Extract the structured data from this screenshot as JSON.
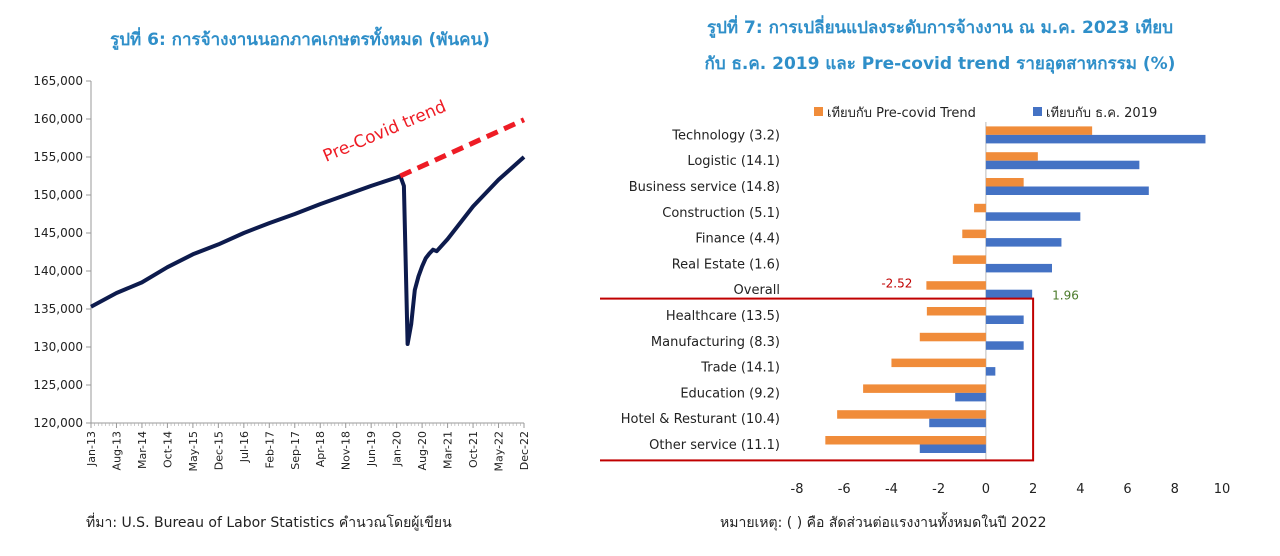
{
  "left": {
    "title": "รูปที่ 6: การจ้างงานนอกภาคเกษตรทั้งหมด (พันคน)",
    "source": "ที่มา:  U.S. Bureau of Labor Statistics คำนวณโดยผู้เขียน",
    "annotation": "Pre-Covid trend"
  },
  "right": {
    "title_line1": "รูปที่ 7: การเปลี่ยนแปลงระดับการจ้างงาน ณ ม.ค. 2023 เทียบ",
    "title_line2": "กับ ธ.ค. 2019 และ Pre-covid trend รายอุตสาหกรรม (%)",
    "note": "หมายเหตุ:  ( ) คือ สัดส่วนต่อแรงงานทั้งหมดในปี 2022"
  },
  "colors": {
    "line": "#0d1b4d",
    "trend": "#ee1c25",
    "orange": "#f08c3a",
    "blue": "#4472c4",
    "highlight_box": "#c00000",
    "title": "#2f8fc9"
  },
  "chart_data": [
    {
      "type": "line",
      "title": "รูปที่ 6: การจ้างงานนอกภาคเกษตรทั้งหมด (พันคน)",
      "ylim": [
        120000,
        165000
      ],
      "yticks": [
        "165,000",
        "160,000",
        "155,000",
        "150,000",
        "145,000",
        "140,000",
        "135,000",
        "130,000",
        "125,000",
        "120,000"
      ],
      "yticks_values": [
        165000,
        160000,
        155000,
        150000,
        145000,
        140000,
        135000,
        130000,
        125000,
        120000
      ],
      "xticks": [
        "Jan-13",
        "Aug-13",
        "Mar-14",
        "Oct-14",
        "May-15",
        "Dec-15",
        "Jul-16",
        "Feb-17",
        "Sep-17",
        "Apr-18",
        "Nov-18",
        "Jun-19",
        "Jan-20",
        "Aug-20",
        "Mar-21",
        "Oct-21",
        "May-22",
        "Dec-22"
      ],
      "series": [
        {
          "name": "",
          "x": [
            "Jan-13",
            "Aug-13",
            "Mar-14",
            "Oct-14",
            "May-15",
            "Dec-15",
            "Jul-16",
            "Feb-17",
            "Sep-17",
            "Apr-18",
            "Nov-18",
            "Jun-19",
            "Jan-20",
            "Feb-20",
            "Mar-20",
            "Apr-20",
            "May-20",
            "Jun-20",
            "Jul-20",
            "Aug-20",
            "Sep-20",
            "Oct-20",
            "Nov-20",
            "Dec-20",
            "Mar-21",
            "Oct-21",
            "May-22",
            "Dec-22"
          ],
          "values": [
            135300,
            137100,
            138500,
            140500,
            142200,
            143500,
            145000,
            146300,
            147500,
            148800,
            150000,
            151200,
            152300,
            152500,
            151200,
            130400,
            133000,
            137500,
            139300,
            140600,
            141700,
            142300,
            142800,
            142600,
            144200,
            148500,
            152000,
            155000
          ]
        },
        {
          "name": "Pre-Covid trend",
          "style": "dashed",
          "x": [
            "Feb-20",
            "Dec-22"
          ],
          "values": [
            152500,
            159900
          ]
        }
      ]
    },
    {
      "type": "bar",
      "orientation": "horizontal",
      "title": "รูปที่ 7: การเปลี่ยนแปลงระดับการจ้างงาน ณ ม.ค. 2023 เทียบกับ ธ.ค. 2019 และ Pre-covid trend รายอุตสาหกรรม (%)",
      "xlim": [
        -8,
        10
      ],
      "xticks": [
        -8,
        -6,
        -4,
        -2,
        0,
        2,
        4,
        6,
        8,
        10
      ],
      "legend_position": "top",
      "categories": [
        "Technology (3.2)",
        "Logistic (14.1)",
        "Business service (14.8)",
        "Construction (5.1)",
        "Finance (4.4)",
        "Real Estate (1.6)",
        "Overall",
        "Healthcare (13.5)",
        "Manufacturing (8.3)",
        "Trade (14.1)",
        "Education (9.2)",
        "Hotel & Resturant (10.4)",
        "Other service (11.1)"
      ],
      "series": [
        {
          "name": "เทียบกับ Pre-covid Trend",
          "values": [
            4.5,
            2.2,
            1.6,
            -0.5,
            -1.0,
            -1.4,
            -2.52,
            -2.5,
            -2.8,
            -4.0,
            -5.2,
            -6.3,
            -6.8
          ]
        },
        {
          "name": "เทียบกับ ธ.ค. 2019",
          "values": [
            9.3,
            6.5,
            6.9,
            4.0,
            3.2,
            2.8,
            1.96,
            1.6,
            1.6,
            0.4,
            -1.3,
            -2.4,
            -2.8
          ]
        }
      ],
      "data_labels": {
        "overall_trend": "-2.52",
        "overall_dec2019": "1.96"
      },
      "highlighted_categories": [
        "Healthcare (13.5)",
        "Manufacturing (8.3)",
        "Trade (14.1)",
        "Education (9.2)",
        "Hotel & Resturant (10.4)",
        "Other service (11.1)"
      ]
    }
  ]
}
